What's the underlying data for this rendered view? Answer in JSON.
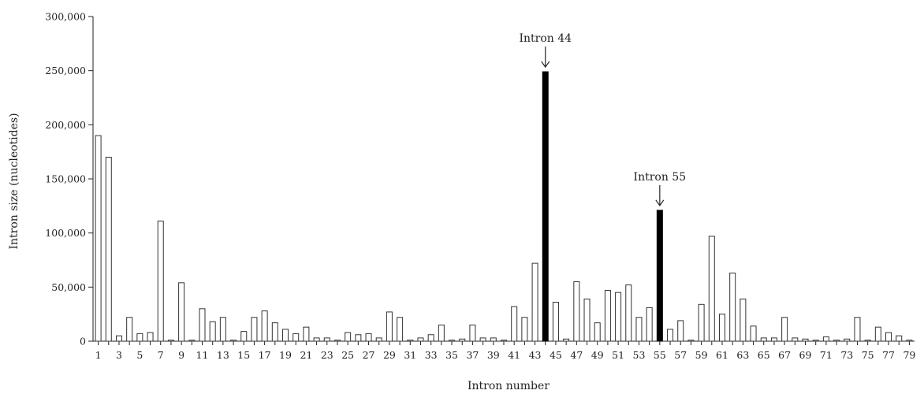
{
  "chart_data": {
    "type": "bar",
    "title": "",
    "xlabel": "Intron number",
    "ylabel": "Intron size (nucleotides)",
    "ylim": [
      0,
      300000
    ],
    "y_ticks": [
      0,
      50000,
      100000,
      150000,
      200000,
      250000,
      300000
    ],
    "y_tick_labels": [
      "0",
      "50,000",
      "100,000",
      "150,000",
      "200,000",
      "250,000",
      "300,000"
    ],
    "x_tick_labels": [
      "1",
      "3",
      "5",
      "7",
      "9",
      "11",
      "13",
      "15",
      "17",
      "19",
      "21",
      "23",
      "25",
      "27",
      "29",
      "31",
      "33",
      "35",
      "37",
      "39",
      "41",
      "43",
      "45",
      "47",
      "49",
      "51",
      "53",
      "55",
      "57",
      "59",
      "61",
      "63",
      "65",
      "67",
      "69",
      "71",
      "73",
      "75",
      "77",
      "79"
    ],
    "categories": [
      1,
      2,
      3,
      4,
      5,
      6,
      7,
      8,
      9,
      10,
      11,
      12,
      13,
      14,
      15,
      16,
      17,
      18,
      19,
      20,
      21,
      22,
      23,
      24,
      25,
      26,
      27,
      28,
      29,
      30,
      31,
      32,
      33,
      34,
      35,
      36,
      37,
      38,
      39,
      40,
      41,
      42,
      43,
      44,
      45,
      46,
      47,
      48,
      49,
      50,
      51,
      52,
      53,
      54,
      55,
      56,
      57,
      58,
      59,
      60,
      61,
      62,
      63,
      64,
      65,
      66,
      67,
      68,
      69,
      70,
      71,
      72,
      73,
      74,
      75,
      76,
      77,
      78,
      79
    ],
    "values": [
      190000,
      170000,
      5000,
      22000,
      7000,
      8000,
      111000,
      1000,
      54000,
      1000,
      30000,
      18000,
      22000,
      1000,
      9000,
      22000,
      28000,
      17000,
      11000,
      7000,
      13000,
      3000,
      3000,
      1000,
      8000,
      6000,
      7000,
      3000,
      27000,
      22000,
      1000,
      3000,
      6000,
      15000,
      1000,
      2000,
      15000,
      3000,
      3000,
      1000,
      32000,
      22000,
      72000,
      249000,
      36000,
      2000,
      55000,
      39000,
      17000,
      47000,
      45000,
      52000,
      22000,
      31000,
      121000,
      11000,
      19000,
      1000,
      34000,
      97000,
      25000,
      63000,
      39000,
      14000,
      3000,
      3000,
      22000,
      3000,
      2000,
      1000,
      4000,
      1000,
      2000,
      22000,
      1000,
      13000,
      8000,
      5000,
      1000
    ],
    "highlighted": [
      44,
      55
    ],
    "colors": {
      "bar_fill": "#ffffff",
      "bar_stroke": "#333333",
      "highlight_fill": "#000000",
      "axis": "#222222"
    },
    "annotations": [
      {
        "label": "Intron 44",
        "intron": 44
      },
      {
        "label": "Intron 55",
        "intron": 55
      }
    ]
  }
}
